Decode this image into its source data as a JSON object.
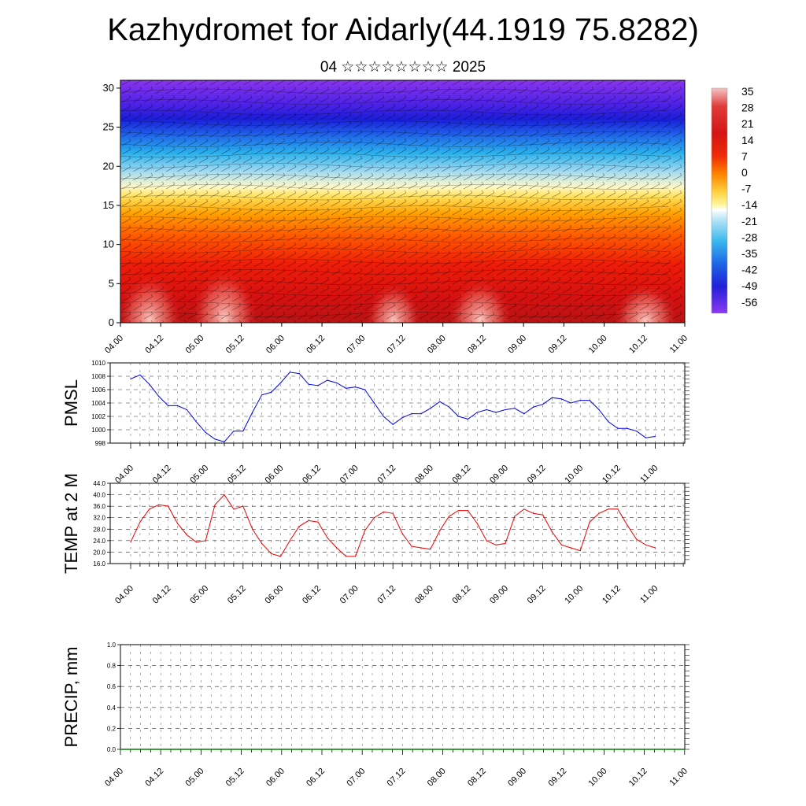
{
  "title": "Kazhydromet for Aidarly(44.1919 75.8282)",
  "subtitle": "04 ☆☆☆☆☆☆☆☆ 2025",
  "colorbar": {
    "labels": [
      "35",
      "28",
      "21",
      "14",
      "7",
      "0",
      "-7",
      "-14",
      "-21",
      "-28",
      "-35",
      "-42",
      "-49",
      "-56"
    ]
  },
  "time_ticks": [
    "04.00",
    "04.12",
    "05.00",
    "05.12",
    "06.00",
    "06.12",
    "07.00",
    "07.12",
    "08.00",
    "08.12",
    "09.00",
    "09.12",
    "10.00",
    "10.12",
    "11.00"
  ],
  "chart_data": [
    {
      "type": "heatmap",
      "panel": "cross-section",
      "description": "temperature vs height with wind barbs",
      "y_ticks": [
        "0",
        "5",
        "10",
        "15",
        "20",
        "25",
        "30"
      ],
      "ylim": [
        0,
        31
      ],
      "x_ticks": [
        "04.00",
        "04.12",
        "05.00",
        "05.12",
        "06.00",
        "06.12",
        "07.00",
        "07.12",
        "08.00",
        "08.12",
        "09.00",
        "09.12",
        "10.00",
        "10.12",
        "11.00"
      ],
      "color_range": [
        -56,
        35
      ]
    },
    {
      "type": "line",
      "panel": "pmsl",
      "ylabel": "PMSL",
      "y_ticks": [
        "998",
        "1000",
        "1002",
        "1004",
        "1006",
        "1008",
        "1010"
      ],
      "ylim": [
        998,
        1010
      ],
      "color": "#0000ee",
      "x_ticks": [
        "04.00",
        "04.12",
        "05.00",
        "05.12",
        "06.00",
        "06.12",
        "07.00",
        "07.12",
        "08.00",
        "08.12",
        "09.00",
        "09.12",
        "10.00",
        "10.12",
        "11.00"
      ],
      "values": [
        1007.6,
        1008.2,
        1006.8,
        1005.0,
        1003.6,
        1003.6,
        1003.0,
        1001.2,
        999.6,
        998.6,
        998.2,
        999.8,
        999.8,
        1002.6,
        1005.2,
        1005.6,
        1007.0,
        1008.6,
        1008.4,
        1006.8,
        1006.6,
        1007.4,
        1007.0,
        1006.2,
        1006.4,
        1006.0,
        1004.0,
        1002.0,
        1000.8,
        1001.8,
        1002.4,
        1002.4,
        1003.2,
        1004.2,
        1003.4,
        1002.0,
        1001.6,
        1002.6,
        1003.0,
        1002.6,
        1003.0,
        1003.2,
        1002.4,
        1003.4,
        1003.8,
        1004.8,
        1004.6,
        1004.0,
        1004.4,
        1004.4,
        1003.0,
        1001.2,
        1000.2,
        1000.2,
        999.8,
        998.8,
        999.0
      ]
    },
    {
      "type": "line",
      "panel": "temp2m",
      "ylabel": "TEMP at 2 M",
      "y_ticks": [
        "16.0",
        "20.0",
        "24.0",
        "28.0",
        "32.0",
        "36.0",
        "40.0",
        "44.0"
      ],
      "ylim": [
        16,
        44
      ],
      "color": "#ee0000",
      "x_ticks": [
        "04.00",
        "04.12",
        "05.00",
        "05.12",
        "06.00",
        "06.12",
        "07.00",
        "07.12",
        "08.00",
        "08.12",
        "09.00",
        "09.12",
        "10.00",
        "10.12",
        "11.00"
      ],
      "values": [
        23.5,
        30.5,
        35.0,
        36.5,
        36.0,
        30.0,
        26.0,
        23.5,
        24.0,
        36.5,
        40.0,
        35.0,
        36.0,
        28.0,
        23.0,
        19.5,
        18.5,
        24.0,
        29.0,
        31.0,
        30.5,
        25.0,
        21.5,
        18.5,
        18.5,
        27.5,
        32.0,
        34.0,
        33.5,
        26.5,
        22.0,
        21.5,
        21.0,
        27.5,
        32.5,
        34.5,
        34.5,
        30.0,
        24.0,
        22.5,
        23.0,
        32.5,
        35.0,
        33.5,
        33.0,
        27.0,
        22.5,
        21.5,
        20.5,
        30.5,
        33.5,
        35.0,
        35.0,
        29.5,
        24.5,
        22.5,
        21.5
      ]
    },
    {
      "type": "line",
      "panel": "precip",
      "ylabel": "PRECIP, mm",
      "y_ticks": [
        "0.0",
        "0.2",
        "0.4",
        "0.6",
        "0.8",
        "1.0"
      ],
      "ylim": [
        0,
        1
      ],
      "color": "#008000",
      "x_ticks": [
        "04.00",
        "04.12",
        "05.00",
        "05.12",
        "06.00",
        "06.12",
        "07.00",
        "07.12",
        "08.00",
        "08.12",
        "09.00",
        "09.12",
        "10.00",
        "10.12",
        "11.00"
      ],
      "values": [
        0,
        0,
        0,
        0,
        0,
        0,
        0,
        0,
        0,
        0,
        0,
        0,
        0,
        0,
        0,
        0,
        0,
        0,
        0,
        0,
        0,
        0,
        0,
        0,
        0,
        0,
        0,
        0,
        0,
        0,
        0,
        0,
        0,
        0,
        0,
        0,
        0,
        0,
        0,
        0,
        0,
        0,
        0,
        0,
        0,
        0,
        0,
        0,
        0,
        0,
        0,
        0,
        0,
        0,
        0,
        0,
        0
      ]
    }
  ]
}
